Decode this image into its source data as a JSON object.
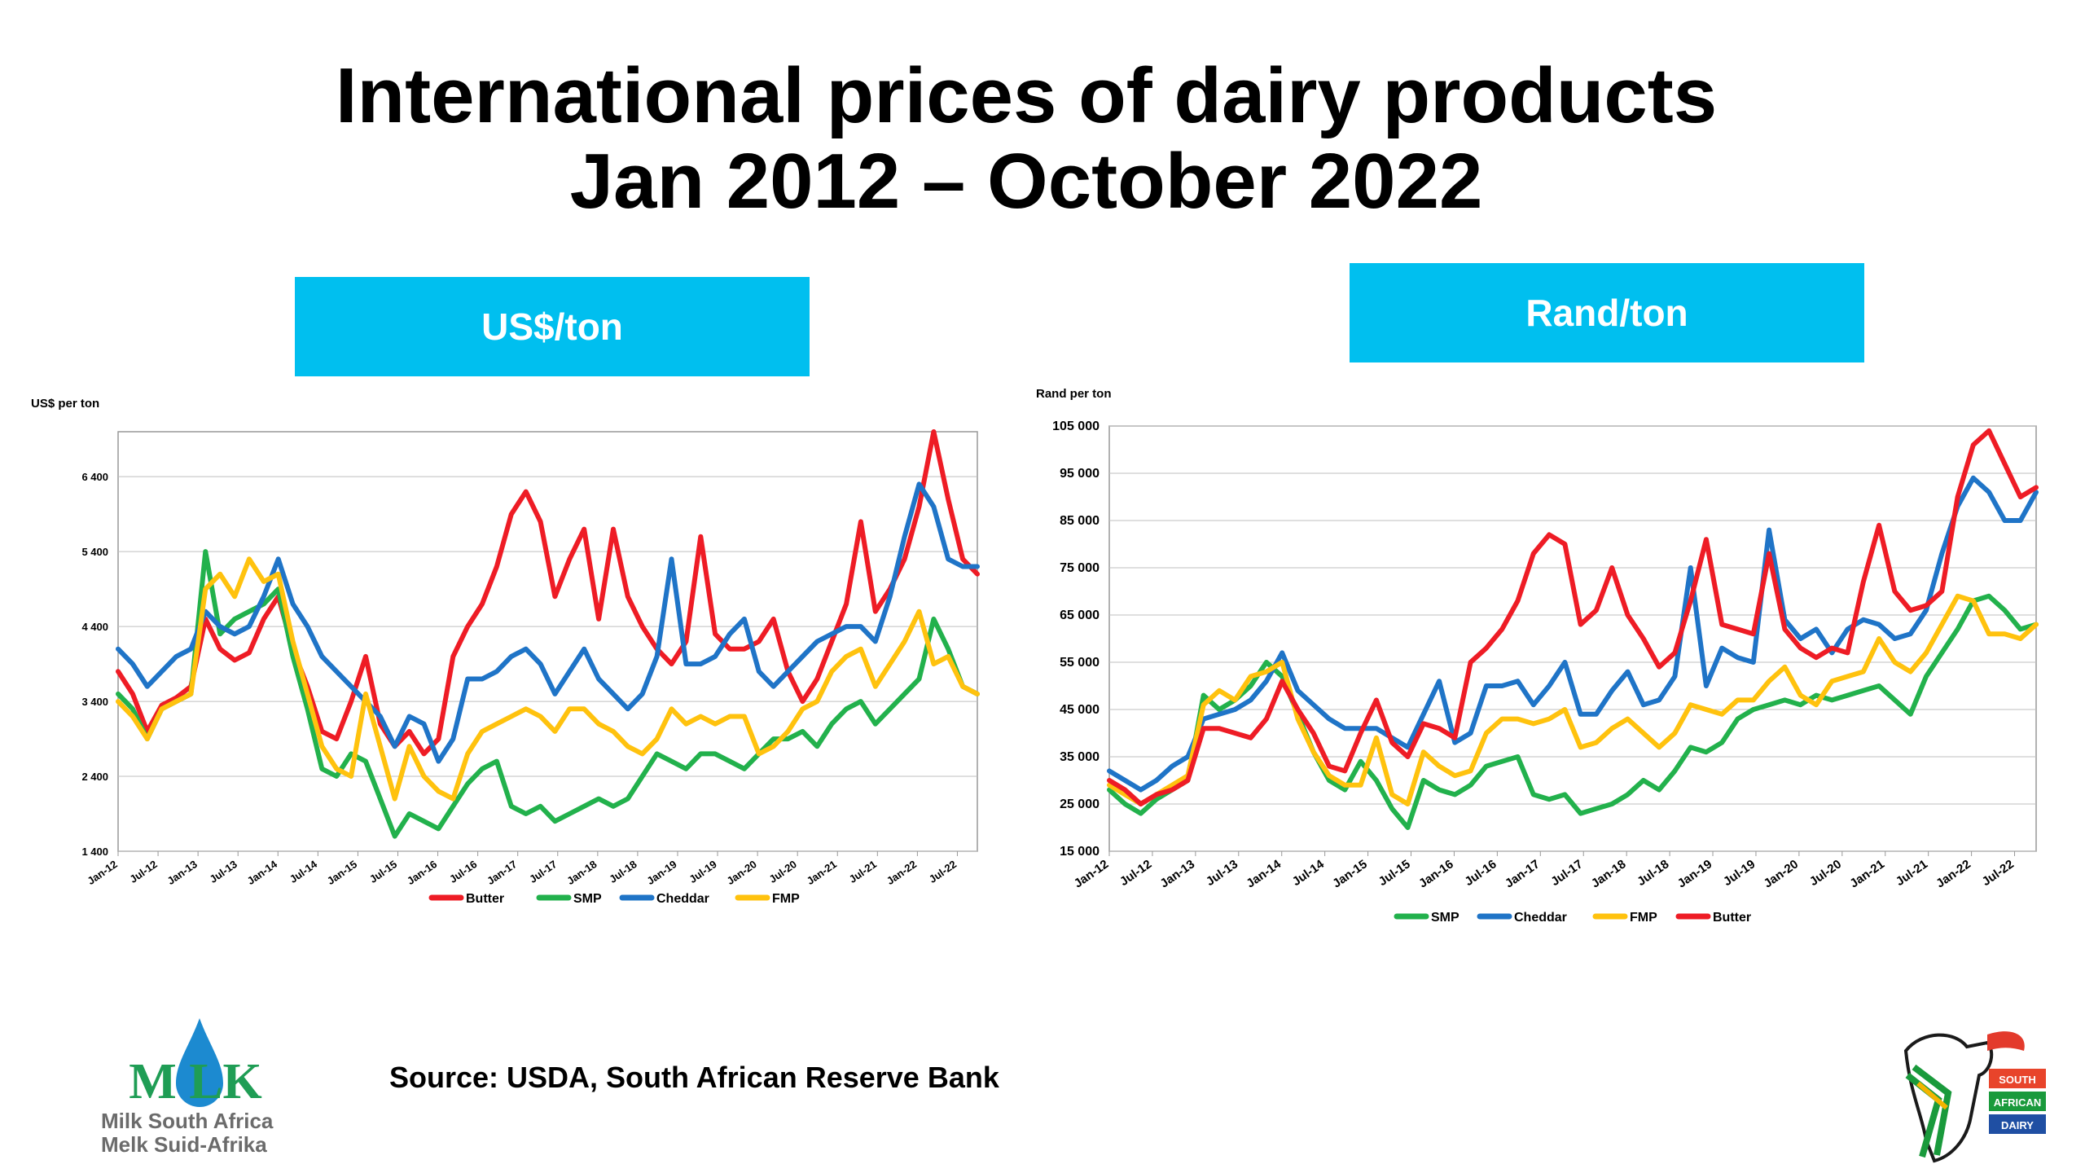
{
  "title_line1": "International prices of dairy products",
  "title_line2": "Jan 2012 – October 2022",
  "banners": {
    "usd": "US$/ton",
    "rand": "Rand/ton"
  },
  "source": "Source: USDA, South African Reserve Bank",
  "logo_milk": {
    "wordmark": "M LK",
    "line1": "Milk South Africa",
    "line2": "Melk Suid-Afrika"
  },
  "logo_dairy": {
    "line1": "SOUTH",
    "line2": "AFRICAN",
    "line3": "DAIRY"
  },
  "colors": {
    "Butter": "#ee1c25",
    "SMP": "#22b14c",
    "Cheddar": "#1f74c7",
    "FMP": "#ffc20e",
    "banner": "#00bfef"
  },
  "chart_data": [
    {
      "id": "usd",
      "type": "line",
      "ylabel": "US$ per ton",
      "ylim": [
        1400,
        7000
      ],
      "yticks": [
        1400,
        2400,
        3400,
        4400,
        5400,
        6400
      ],
      "ytick_labels": [
        "1 400",
        "2 400",
        "3 400",
        "4 400",
        "5 400",
        "6 400"
      ],
      "x_ticks": [
        "Jan-12",
        "Jul-12",
        "Jan-13",
        "Jul-13",
        "Jan-14",
        "Jul-14",
        "Jan-15",
        "Jul-15",
        "Jan-16",
        "Jul-16",
        "Jan-17",
        "Jul-17",
        "Jan-18",
        "Jul-18",
        "Jan-19",
        "Jul-19",
        "Jan-20",
        "Jul-20",
        "Jan-21",
        "Jul-21",
        "Jan-22",
        "Jul-22"
      ],
      "x_range": [
        "Jan-12",
        "Oct-22"
      ],
      "grid": true,
      "legend_position": "bottom",
      "legend": [
        "Butter",
        "SMP",
        "Cheddar",
        "FMP"
      ],
      "series": [
        {
          "name": "Butter",
          "values": [
            3800,
            3500,
            3000,
            3350,
            3450,
            3600,
            4500,
            4100,
            3950,
            4050,
            4500,
            4800,
            4100,
            3600,
            3000,
            2900,
            3400,
            4000,
            3100,
            2800,
            3000,
            2700,
            2900,
            4000,
            4400,
            4700,
            5200,
            5900,
            6200,
            5800,
            4800,
            5300,
            5700,
            4500,
            5700,
            4800,
            4400,
            4100,
            3900,
            4200,
            5600,
            4300,
            4100,
            4100,
            4200,
            4500,
            3800,
            3400,
            3700,
            4200,
            4700,
            5800,
            4600,
            4900,
            5300,
            6000,
            7000,
            6100,
            5300,
            5100
          ]
        },
        {
          "name": "SMP",
          "values": [
            3500,
            3300,
            2900,
            3300,
            3400,
            3500,
            5400,
            4300,
            4500,
            4600,
            4700,
            4900,
            4000,
            3300,
            2500,
            2400,
            2700,
            2600,
            2100,
            1600,
            1900,
            1800,
            1700,
            2000,
            2300,
            2500,
            2600,
            2000,
            1900,
            2000,
            1800,
            1900,
            2000,
            2100,
            2000,
            2100,
            2400,
            2700,
            2600,
            2500,
            2700,
            2700,
            2600,
            2500,
            2700,
            2900,
            2900,
            3000,
            2800,
            3100,
            3300,
            3400,
            3100,
            3300,
            3500,
            3700,
            4500,
            4100,
            3600,
            3500
          ]
        },
        {
          "name": "Cheddar",
          "values": [
            4100,
            3900,
            3600,
            3800,
            4000,
            4100,
            4600,
            4400,
            4300,
            4400,
            4800,
            5300,
            4700,
            4400,
            4000,
            3800,
            3600,
            3400,
            3200,
            2800,
            3200,
            3100,
            2600,
            2900,
            3700,
            3700,
            3800,
            4000,
            4100,
            3900,
            3500,
            3800,
            4100,
            3700,
            3500,
            3300,
            3500,
            4000,
            5300,
            3900,
            3900,
            4000,
            4300,
            4500,
            3800,
            3600,
            3800,
            4000,
            4200,
            4300,
            4400,
            4400,
            4200,
            4800,
            5600,
            6300,
            6000,
            5300,
            5200,
            5200
          ]
        },
        {
          "name": "FMP",
          "values": [
            3400,
            3200,
            2900,
            3300,
            3400,
            3500,
            4900,
            5100,
            4800,
            5300,
            5000,
            5100,
            4200,
            3500,
            2800,
            2500,
            2400,
            3500,
            2800,
            2100,
            2800,
            2400,
            2200,
            2100,
            2700,
            3000,
            3100,
            3200,
            3300,
            3200,
            3000,
            3300,
            3300,
            3100,
            3000,
            2800,
            2700,
            2900,
            3300,
            3100,
            3200,
            3100,
            3200,
            3200,
            2700,
            2800,
            3000,
            3300,
            3400,
            3800,
            4000,
            4100,
            3600,
            3900,
            4200,
            4600,
            3900,
            4000,
            3600,
            3500
          ]
        }
      ]
    },
    {
      "id": "rand",
      "type": "line",
      "ylabel": "Rand per ton",
      "ylim": [
        15000,
        105000
      ],
      "yticks": [
        15000,
        25000,
        35000,
        45000,
        55000,
        65000,
        75000,
        85000,
        95000,
        105000
      ],
      "ytick_labels": [
        "15 000",
        "25 000",
        "35 000",
        "45 000",
        "55 000",
        "65 000",
        "75 000",
        "85 000",
        "95 000",
        "105 000"
      ],
      "x_ticks": [
        "Jan-12",
        "Jul-12",
        "Jan-13",
        "Jul-13",
        "Jan-14",
        "Jul-14",
        "Jan-15",
        "Jul-15",
        "Jan-16",
        "Jul-16",
        "Jan-17",
        "Jul-17",
        "Jan-18",
        "Jul-18",
        "Jan-19",
        "Jul-19",
        "Jan-20",
        "Jul-20",
        "Jan-21",
        "Jul-21",
        "Jan-22",
        "Jul-22"
      ],
      "x_range": [
        "Jan-12",
        "Oct-22"
      ],
      "grid": true,
      "legend_position": "bottom",
      "legend": [
        "SMP",
        "Cheddar",
        "FMP",
        "Butter"
      ],
      "series": [
        {
          "name": "SMP",
          "values": [
            28000,
            25000,
            23000,
            26000,
            28000,
            30000,
            48000,
            45000,
            47000,
            50000,
            55000,
            52000,
            44000,
            36000,
            30000,
            28000,
            34000,
            30000,
            24000,
            20000,
            30000,
            28000,
            27000,
            29000,
            33000,
            34000,
            35000,
            27000,
            26000,
            27000,
            23000,
            24000,
            25000,
            27000,
            30000,
            28000,
            32000,
            37000,
            36000,
            38000,
            43000,
            45000,
            46000,
            47000,
            46000,
            48000,
            47000,
            48000,
            49000,
            50000,
            47000,
            44000,
            52000,
            57000,
            62000,
            68000,
            69000,
            66000,
            62000,
            63000
          ]
        },
        {
          "name": "Cheddar",
          "values": [
            32000,
            30000,
            28000,
            30000,
            33000,
            35000,
            43000,
            44000,
            45000,
            47000,
            51000,
            57000,
            49000,
            46000,
            43000,
            41000,
            41000,
            41000,
            39000,
            37000,
            44000,
            51000,
            38000,
            40000,
            50000,
            50000,
            51000,
            46000,
            50000,
            55000,
            44000,
            44000,
            49000,
            53000,
            46000,
            47000,
            52000,
            75000,
            50000,
            58000,
            56000,
            55000,
            83000,
            64000,
            60000,
            62000,
            57000,
            62000,
            64000,
            63000,
            60000,
            61000,
            66000,
            78000,
            88000,
            94000,
            91000,
            85000,
            85000,
            91000
          ]
        },
        {
          "name": "FMP",
          "values": [
            29000,
            27000,
            25000,
            27000,
            29000,
            31000,
            46000,
            49000,
            47000,
            52000,
            53000,
            55000,
            43000,
            36000,
            31000,
            29000,
            29000,
            39000,
            27000,
            25000,
            36000,
            33000,
            31000,
            32000,
            40000,
            43000,
            43000,
            42000,
            43000,
            45000,
            37000,
            38000,
            41000,
            43000,
            40000,
            37000,
            40000,
            46000,
            45000,
            44000,
            47000,
            47000,
            51000,
            54000,
            48000,
            46000,
            51000,
            52000,
            53000,
            60000,
            55000,
            53000,
            57000,
            63000,
            69000,
            68000,
            61000,
            61000,
            60000,
            63000
          ]
        },
        {
          "name": "Butter",
          "values": [
            30000,
            28000,
            25000,
            27000,
            28000,
            30000,
            41000,
            41000,
            40000,
            39000,
            43000,
            51000,
            45000,
            40000,
            33000,
            32000,
            40000,
            47000,
            38000,
            35000,
            42000,
            41000,
            39000,
            55000,
            58000,
            62000,
            68000,
            78000,
            82000,
            80000,
            63000,
            66000,
            75000,
            65000,
            60000,
            54000,
            57000,
            68000,
            81000,
            63000,
            62000,
            61000,
            78000,
            62000,
            58000,
            56000,
            58000,
            57000,
            72000,
            84000,
            70000,
            66000,
            67000,
            70000,
            90000,
            101000,
            104000,
            97000,
            90000,
            92000
          ]
        }
      ]
    }
  ]
}
